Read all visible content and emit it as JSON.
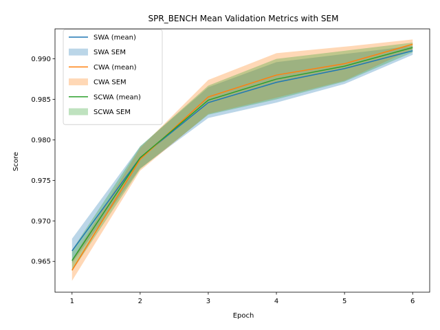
{
  "chart_data": {
    "type": "line",
    "title": "SPR_BENCH Mean Validation Metrics with SEM",
    "xlabel": "Epoch",
    "ylabel": "Score",
    "x": [
      1,
      2,
      3,
      4,
      5,
      6
    ],
    "xlim": [
      0.75,
      6.25
    ],
    "ylim": [
      0.9612,
      0.9937
    ],
    "xticks": [
      1,
      2,
      3,
      4,
      5,
      6
    ],
    "yticks": [
      0.965,
      0.97,
      0.975,
      0.98,
      0.985,
      0.99
    ],
    "ytick_labels": [
      "0.965",
      "0.970",
      "0.975",
      "0.980",
      "0.985",
      "0.990"
    ],
    "grid": false,
    "legend_position": "upper-left",
    "series": [
      {
        "name": "SWA (mean)",
        "band_name": "SWA SEM",
        "color": "#1f77b4",
        "values": [
          0.9663,
          0.9778,
          0.9846,
          0.9871,
          0.9888,
          0.991
        ],
        "lower": [
          0.9648,
          0.9765,
          0.9827,
          0.9846,
          0.9869,
          0.9905
        ],
        "upper": [
          0.9678,
          0.9792,
          0.9865,
          0.9896,
          0.9906,
          0.9916
        ]
      },
      {
        "name": "CWA (mean)",
        "band_name": "CWA SEM",
        "color": "#ff7f0e",
        "values": [
          0.9639,
          0.9776,
          0.9853,
          0.988,
          0.9894,
          0.9918
        ],
        "lower": [
          0.9626,
          0.9762,
          0.9832,
          0.9852,
          0.9873,
          0.9912
        ],
        "upper": [
          0.9652,
          0.979,
          0.9874,
          0.9907,
          0.9915,
          0.9924
        ]
      },
      {
        "name": "SCWA (mean)",
        "band_name": "SCWA SEM",
        "color": "#2ca02c",
        "values": [
          0.9651,
          0.9778,
          0.9849,
          0.9875,
          0.9891,
          0.9914
        ],
        "lower": [
          0.9638,
          0.9764,
          0.9831,
          0.985,
          0.9872,
          0.9908
        ],
        "upper": [
          0.9664,
          0.9792,
          0.9867,
          0.99,
          0.991,
          0.992
        ]
      }
    ]
  }
}
